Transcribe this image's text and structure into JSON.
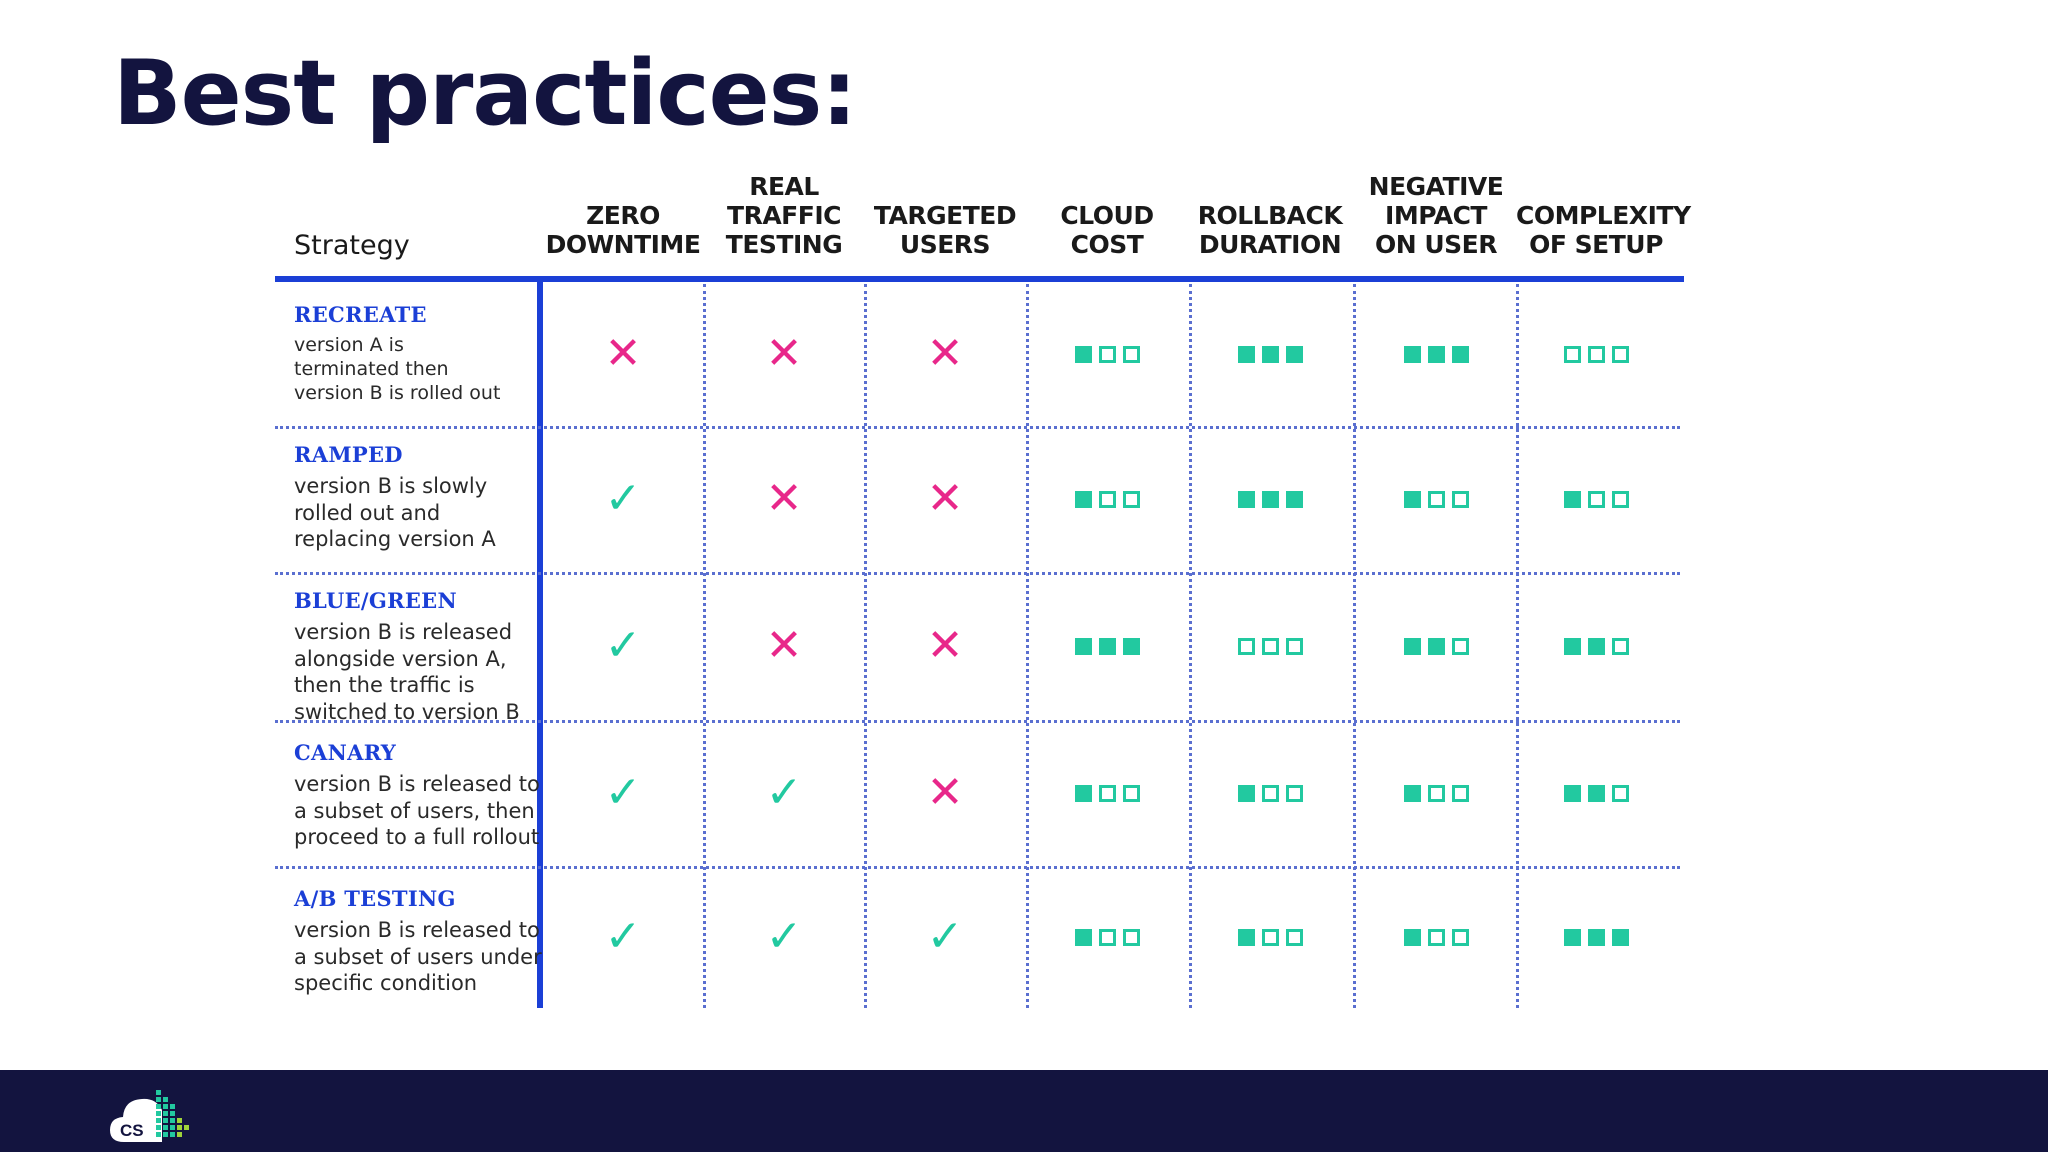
{
  "title": "Best practices:",
  "table": {
    "strategy_header": "Strategy",
    "columns": [
      {
        "id": "zero-downtime",
        "label": "ZERO\nDOWNTIME",
        "type": "bool"
      },
      {
        "id": "real-traffic-testing",
        "label": "REAL\nTRAFFIC\nTESTING",
        "type": "bool"
      },
      {
        "id": "targeted-users",
        "label": "TARGETED\nUSERS",
        "type": "bool"
      },
      {
        "id": "cloud-cost",
        "label": "CLOUD\nCOST",
        "type": "level"
      },
      {
        "id": "rollback-duration",
        "label": "ROLLBACK\nDURATION",
        "type": "level"
      },
      {
        "id": "negative-impact",
        "label": "NEGATIVE\nIMPACT\nON USER",
        "type": "level"
      },
      {
        "id": "complexity",
        "label": "COMPLEXITY\nOF SETUP",
        "type": "level"
      }
    ],
    "rows": [
      {
        "id": "recreate",
        "name": "RECREATE",
        "description": "version A is\nterminated then\nversion B is rolled out",
        "values": [
          false,
          false,
          false,
          1,
          3,
          3,
          0
        ]
      },
      {
        "id": "ramped",
        "name": "RAMPED",
        "description": "version B is slowly\nrolled out and\nreplacing version A",
        "values": [
          true,
          false,
          false,
          1,
          3,
          1,
          1
        ]
      },
      {
        "id": "blue-green",
        "name": "BLUE/GREEN",
        "description": "version B is released\nalongside version A,\nthen the traffic is\nswitched to version B",
        "values": [
          true,
          false,
          false,
          3,
          0,
          2,
          2
        ]
      },
      {
        "id": "canary",
        "name": "CANARY",
        "description": "version B is released to\na subset of users, then\nproceed to a full rollout",
        "values": [
          true,
          true,
          false,
          1,
          1,
          1,
          2
        ]
      },
      {
        "id": "ab-testing",
        "name": "A/B TESTING",
        "description": "version B is released to\na subset of users under\nspecific condition",
        "values": [
          true,
          true,
          true,
          1,
          1,
          1,
          3
        ]
      }
    ],
    "level_max": 3
  },
  "symbols": {
    "yes": "✓",
    "no": "✕"
  },
  "colors": {
    "title": "#13143f",
    "accent_blue": "#1b3fd6",
    "cross": "#e8278a",
    "check_and_level": "#22c9a0",
    "footer": "#13143f"
  },
  "footer": {
    "logo_text": "CS",
    "logo_icon": "cloud-logo-icon"
  }
}
